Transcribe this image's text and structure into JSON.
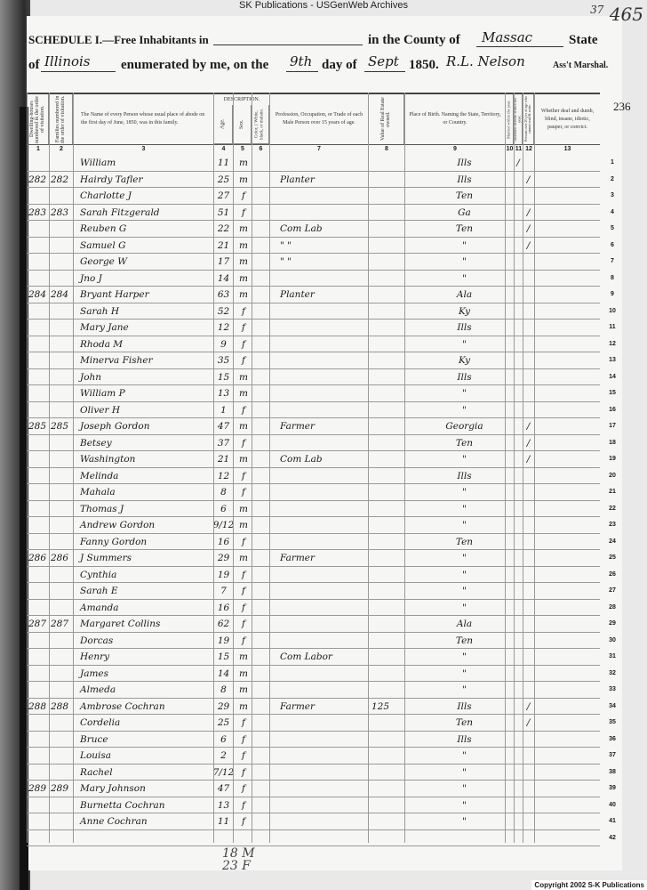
{
  "watermark": "SK Publications - USGenWeb Archives",
  "page_number_handwritten": "465",
  "page_corner_mark": "37",
  "sheet_number": "236",
  "header": {
    "schedule_label": "SCHEDULE I.—Free Inhabitants in",
    "county_label": "in the County of",
    "county_value": "Massac",
    "state_label": "State",
    "of_label": "of",
    "state_value": "Illinois",
    "enumerated_label": "enumerated by me, on the",
    "day_value": "9th",
    "day_label": "day of",
    "month_value": "Sept",
    "year": "1850.",
    "marshal_signature": "R.L. Nelson",
    "marshal_label": "Ass't Marshal."
  },
  "columns": [
    {
      "num": "1",
      "label": "Dwelling-houses numbered in the order of visitation."
    },
    {
      "num": "2",
      "label": "Families numbered in the order of visitation."
    },
    {
      "num": "3",
      "label": "The Name of every Person whose usual place of abode on the first day of June, 1850, was in this family."
    },
    {
      "num": "4",
      "label": "Age."
    },
    {
      "num": "5",
      "label": "Sex."
    },
    {
      "num": "6",
      "label": "Color, { White, black, or mulatto."
    },
    {
      "num": "7",
      "label": "Profession, Occupation, or Trade of each Male Person over 15 years of age."
    },
    {
      "num": "8",
      "label": "Value of Real Estate owned."
    },
    {
      "num": "9",
      "label": "Place of Birth. Naming the State, Territory, or Country."
    },
    {
      "num": "10",
      "label": "Married within the year."
    },
    {
      "num": "11",
      "label": "Attended School within the year."
    },
    {
      "num": "12",
      "label": "Persons over 20 y'rs of age who cannot read & write."
    },
    {
      "num": "13",
      "label": "Whether deaf and dumb, blind, insane, idiotic, pauper, or convict."
    }
  ],
  "description_label": "DESCRIPTION.",
  "rows": [
    {
      "line": "1",
      "dwelling": "",
      "family": "",
      "name": "William",
      "age": "11",
      "sex": "m",
      "occupation": "",
      "value": "",
      "birth": "Ills",
      "c11": "/",
      "c12": ""
    },
    {
      "line": "2",
      "dwelling": "282",
      "family": "282",
      "name": "Hairdy Tafler",
      "age": "25",
      "sex": "m",
      "occupation": "Planter",
      "value": "",
      "birth": "Ills",
      "c11": "",
      "c12": "/"
    },
    {
      "line": "3",
      "dwelling": "",
      "family": "",
      "name": "Charlotte J",
      "age": "27",
      "sex": "f",
      "occupation": "",
      "value": "",
      "birth": "Ten",
      "c11": "",
      "c12": ""
    },
    {
      "line": "4",
      "dwelling": "283",
      "family": "283",
      "name": "Sarah Fitzgerald",
      "age": "51",
      "sex": "f",
      "occupation": "",
      "value": "",
      "birth": "Ga",
      "c11": "",
      "c12": "/"
    },
    {
      "line": "5",
      "dwelling": "",
      "family": "",
      "name": "Reuben G",
      "age": "22",
      "sex": "m",
      "occupation": "Com Lab",
      "value": "",
      "birth": "Ten",
      "c11": "",
      "c12": "/"
    },
    {
      "line": "6",
      "dwelling": "",
      "family": "",
      "name": "Samuel G",
      "age": "21",
      "sex": "m",
      "occupation": "\"   \"",
      "value": "",
      "birth": "\"",
      "c11": "",
      "c12": "/"
    },
    {
      "line": "7",
      "dwelling": "",
      "family": "",
      "name": "George W",
      "age": "17",
      "sex": "m",
      "occupation": "\"   \"",
      "value": "",
      "birth": "\"",
      "c11": "",
      "c12": ""
    },
    {
      "line": "8",
      "dwelling": "",
      "family": "",
      "name": "Jno J",
      "age": "14",
      "sex": "m",
      "occupation": "",
      "value": "",
      "birth": "\"",
      "c11": "",
      "c12": ""
    },
    {
      "line": "9",
      "dwelling": "284",
      "family": "284",
      "name": "Bryant Harper",
      "age": "63",
      "sex": "m",
      "occupation": "Planter",
      "value": "",
      "birth": "Ala",
      "c11": "",
      "c12": ""
    },
    {
      "line": "10",
      "dwelling": "",
      "family": "",
      "name": "Sarah H",
      "age": "52",
      "sex": "f",
      "occupation": "",
      "value": "",
      "birth": "Ky",
      "c11": "",
      "c12": ""
    },
    {
      "line": "11",
      "dwelling": "",
      "family": "",
      "name": "Mary Jane",
      "age": "12",
      "sex": "f",
      "occupation": "",
      "value": "",
      "birth": "Ills",
      "c11": "",
      "c12": ""
    },
    {
      "line": "12",
      "dwelling": "",
      "family": "",
      "name": "Rhoda M",
      "age": "9",
      "sex": "f",
      "occupation": "",
      "value": "",
      "birth": "\"",
      "c11": "",
      "c12": ""
    },
    {
      "line": "13",
      "dwelling": "",
      "family": "",
      "name": "Minerva Fisher",
      "age": "35",
      "sex": "f",
      "occupation": "",
      "value": "",
      "birth": "Ky",
      "c11": "",
      "c12": ""
    },
    {
      "line": "14",
      "dwelling": "",
      "family": "",
      "name": "John",
      "age": "15",
      "sex": "m",
      "occupation": "",
      "value": "",
      "birth": "Ills",
      "c11": "",
      "c12": ""
    },
    {
      "line": "15",
      "dwelling": "",
      "family": "",
      "name": "William P",
      "age": "13",
      "sex": "m",
      "occupation": "",
      "value": "",
      "birth": "\"",
      "c11": "",
      "c12": ""
    },
    {
      "line": "16",
      "dwelling": "",
      "family": "",
      "name": "Oliver H",
      "age": "1",
      "sex": "f",
      "occupation": "",
      "value": "",
      "birth": "\"",
      "c11": "",
      "c12": ""
    },
    {
      "line": "17",
      "dwelling": "285",
      "family": "285",
      "name": "Joseph Gordon",
      "age": "47",
      "sex": "m",
      "occupation": "Farmer",
      "value": "",
      "birth": "Georgia",
      "c11": "",
      "c12": "/"
    },
    {
      "line": "18",
      "dwelling": "",
      "family": "",
      "name": "Betsey",
      "age": "37",
      "sex": "f",
      "occupation": "",
      "value": "",
      "birth": "Ten",
      "c11": "",
      "c12": "/"
    },
    {
      "line": "19",
      "dwelling": "",
      "family": "",
      "name": "Washington",
      "age": "21",
      "sex": "m",
      "occupation": "Com Lab",
      "value": "",
      "birth": "\"",
      "c11": "",
      "c12": "/"
    },
    {
      "line": "20",
      "dwelling": "",
      "family": "",
      "name": "Melinda",
      "age": "12",
      "sex": "f",
      "occupation": "",
      "value": "",
      "birth": "Ills",
      "c11": "",
      "c12": ""
    },
    {
      "line": "21",
      "dwelling": "",
      "family": "",
      "name": "Mahala",
      "age": "8",
      "sex": "f",
      "occupation": "",
      "value": "",
      "birth": "\"",
      "c11": "",
      "c12": ""
    },
    {
      "line": "22",
      "dwelling": "",
      "family": "",
      "name": "Thomas J",
      "age": "6",
      "sex": "m",
      "occupation": "",
      "value": "",
      "birth": "\"",
      "c11": "",
      "c12": ""
    },
    {
      "line": "23",
      "dwelling": "",
      "family": "",
      "name": "Andrew Gordon",
      "age": "9/12",
      "sex": "m",
      "occupation": "",
      "value": "",
      "birth": "\"",
      "c11": "",
      "c12": ""
    },
    {
      "line": "24",
      "dwelling": "",
      "family": "",
      "name": "Fanny Gordon",
      "age": "16",
      "sex": "f",
      "occupation": "",
      "value": "",
      "birth": "Ten",
      "c11": "",
      "c12": ""
    },
    {
      "line": "25",
      "dwelling": "286",
      "family": "286",
      "name": "J Summers",
      "age": "29",
      "sex": "m",
      "occupation": "Farmer",
      "value": "",
      "birth": "\"",
      "c11": "",
      "c12": ""
    },
    {
      "line": "26",
      "dwelling": "",
      "family": "",
      "name": "Cynthia",
      "age": "19",
      "sex": "f",
      "occupation": "",
      "value": "",
      "birth": "\"",
      "c11": "",
      "c12": ""
    },
    {
      "line": "27",
      "dwelling": "",
      "family": "",
      "name": "Sarah E",
      "age": "7",
      "sex": "f",
      "occupation": "",
      "value": "",
      "birth": "\"",
      "c11": "",
      "c12": ""
    },
    {
      "line": "28",
      "dwelling": "",
      "family": "",
      "name": "Amanda",
      "age": "16",
      "sex": "f",
      "occupation": "",
      "value": "",
      "birth": "\"",
      "c11": "",
      "c12": ""
    },
    {
      "line": "29",
      "dwelling": "287",
      "family": "287",
      "name": "Margaret Collins",
      "age": "62",
      "sex": "f",
      "occupation": "",
      "value": "",
      "birth": "Ala",
      "c11": "",
      "c12": ""
    },
    {
      "line": "30",
      "dwelling": "",
      "family": "",
      "name": "Dorcas",
      "age": "19",
      "sex": "f",
      "occupation": "",
      "value": "",
      "birth": "Ten",
      "c11": "",
      "c12": ""
    },
    {
      "line": "31",
      "dwelling": "",
      "family": "",
      "name": "Henry",
      "age": "15",
      "sex": "m",
      "occupation": "Com Labor",
      "value": "",
      "birth": "\"",
      "c11": "",
      "c12": ""
    },
    {
      "line": "32",
      "dwelling": "",
      "family": "",
      "name": "James",
      "age": "14",
      "sex": "m",
      "occupation": "",
      "value": "",
      "birth": "\"",
      "c11": "",
      "c12": ""
    },
    {
      "line": "33",
      "dwelling": "",
      "family": "",
      "name": "Almeda",
      "age": "8",
      "sex": "m",
      "occupation": "",
      "value": "",
      "birth": "\"",
      "c11": "",
      "c12": ""
    },
    {
      "line": "34",
      "dwelling": "288",
      "family": "288",
      "name": "Ambrose Cochran",
      "age": "29",
      "sex": "m",
      "occupation": "Farmer",
      "value": "125",
      "birth": "Ills",
      "c11": "",
      "c12": "/"
    },
    {
      "line": "35",
      "dwelling": "",
      "family": "",
      "name": "Cordelia",
      "age": "25",
      "sex": "f",
      "occupation": "",
      "value": "",
      "birth": "Ten",
      "c11": "",
      "c12": "/"
    },
    {
      "line": "36",
      "dwelling": "",
      "family": "",
      "name": "Bruce",
      "age": "6",
      "sex": "f",
      "occupation": "",
      "value": "",
      "birth": "Ills",
      "c11": "",
      "c12": ""
    },
    {
      "line": "37",
      "dwelling": "",
      "family": "",
      "name": "Louisa",
      "age": "2",
      "sex": "f",
      "occupation": "",
      "value": "",
      "birth": "\"",
      "c11": "",
      "c12": ""
    },
    {
      "line": "38",
      "dwelling": "",
      "family": "",
      "name": "Rachel",
      "age": "7/12",
      "sex": "f",
      "occupation": "",
      "value": "",
      "birth": "\"",
      "c11": "",
      "c12": ""
    },
    {
      "line": "39",
      "dwelling": "289",
      "family": "289",
      "name": "Mary Johnson",
      "age": "47",
      "sex": "f",
      "occupation": "",
      "value": "",
      "birth": "\"",
      "c11": "",
      "c12": ""
    },
    {
      "line": "40",
      "dwelling": "",
      "family": "",
      "name": "Burnetta Cochran",
      "age": "13",
      "sex": "f",
      "occupation": "",
      "value": "",
      "birth": "\"",
      "c11": "",
      "c12": ""
    },
    {
      "line": "41",
      "dwelling": "",
      "family": "",
      "name": "Anne Cochran",
      "age": "11",
      "sex": "f",
      "occupation": "",
      "value": "",
      "birth": "\"",
      "c11": "",
      "c12": ""
    },
    {
      "line": "42",
      "dwelling": "",
      "family": "",
      "name": "",
      "age": "",
      "sex": "",
      "occupation": "",
      "value": "",
      "birth": "",
      "c11": "",
      "c12": ""
    }
  ],
  "footer_tally": [
    "18 M",
    "23 F"
  ],
  "copyright": "Copyright 2002 S-K Publications"
}
